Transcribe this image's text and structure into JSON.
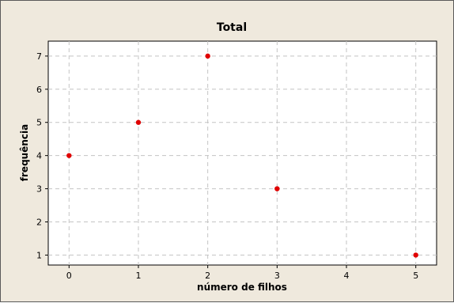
{
  "chart_data": {
    "type": "scatter",
    "title": "Total",
    "xlabel": "número de filhos",
    "ylabel": "frequência",
    "x": [
      0,
      1,
      2,
      3,
      5
    ],
    "y": [
      4,
      5,
      7,
      3,
      1
    ],
    "xticks": [
      "0",
      "1",
      "2",
      "3",
      "4",
      "5"
    ],
    "yticks": [
      "1",
      "2",
      "3",
      "4",
      "5",
      "6",
      "7"
    ],
    "xlim": [
      -0.3,
      5.3
    ],
    "ylim": [
      0.7,
      7.45
    ],
    "grid": true,
    "colors": {
      "background": "#efe9dd",
      "plot_background": "#ffffff",
      "marker": "#e00000",
      "grid": "#c4c4c4"
    }
  }
}
